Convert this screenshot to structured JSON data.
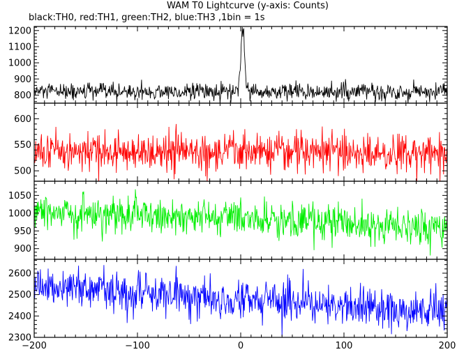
{
  "chart_data": {
    "type": "line",
    "title": "WAM T0 Lightcurve (y-axis: Counts)",
    "subtitle": "black:TH0, red:TH1, green:TH2, blue:TH3 ,1bin = 1s",
    "xlim": [
      -200,
      200
    ],
    "x_ticks": [
      -200,
      -100,
      0,
      100,
      200
    ],
    "x_step": 0.5,
    "grid": false,
    "panels": [
      {
        "name": "TH0",
        "color": "#000000",
        "ylim": [
          750,
          1225
        ],
        "y_ticks": [
          800,
          900,
          1000,
          1100,
          1200
        ],
        "baseline": 820,
        "noise": 26,
        "features": [
          {
            "x": 2,
            "peak": 1200,
            "width": 1.8
          }
        ]
      },
      {
        "name": "TH1",
        "color": "#ff0000",
        "ylim": [
          480,
          630
        ],
        "y_ticks": [
          500,
          550,
          600
        ],
        "baseline": 536,
        "noise": 19,
        "features": []
      },
      {
        "name": "TH2",
        "color": "#00ee00",
        "ylim": [
          870,
          1090
        ],
        "y_ticks": [
          900,
          950,
          1000,
          1050
        ],
        "baseline_start": 1005,
        "baseline_end": 960,
        "noise": 27,
        "features": []
      },
      {
        "name": "TH3",
        "color": "#0000ff",
        "ylim": [
          2300,
          2665
        ],
        "y_ticks": [
          2300,
          2400,
          2500,
          2600
        ],
        "baseline_start": 2545,
        "baseline_end": 2415,
        "noise": 46,
        "features": []
      }
    ]
  }
}
